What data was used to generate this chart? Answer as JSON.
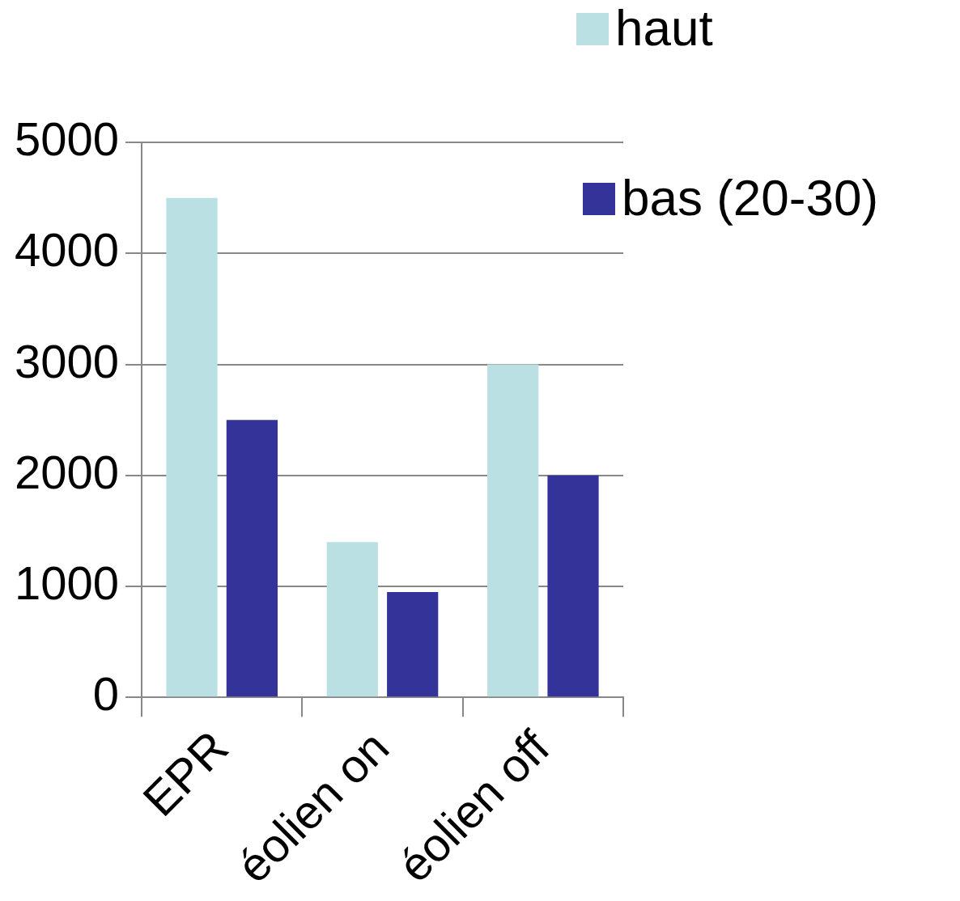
{
  "chart_data": {
    "type": "bar",
    "categories": [
      "EPR",
      "éolien on",
      "éolien off"
    ],
    "series": [
      {
        "name": "haut",
        "color": "#bbe0e3",
        "values": [
          4500,
          1400,
          3000
        ]
      },
      {
        "name": "bas (20-30)",
        "color": "#333399",
        "values": [
          2500,
          950,
          2000
        ]
      }
    ],
    "ylim": [
      0,
      5000
    ],
    "yticks": [
      0,
      1000,
      2000,
      3000,
      4000,
      5000
    ],
    "grid": "y",
    "legend": "right"
  }
}
